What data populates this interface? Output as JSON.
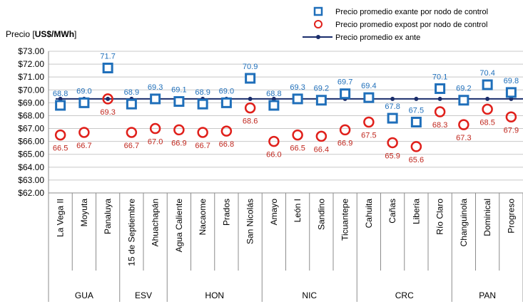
{
  "chart_data": {
    "type": "scatter",
    "title": "",
    "ylabel_prefix": "Precio [",
    "ylabel_bold": "US$/MWh",
    "ylabel_suffix": "]",
    "ylim": [
      62,
      73
    ],
    "y_ticks": [
      "$62.00",
      "$63.00",
      "$64.00",
      "$65.00",
      "$66.00",
      "$67.00",
      "$68.00",
      "$69.00",
      "$70.00",
      "$71.00",
      "$72.00",
      "$73.00"
    ],
    "categories": [
      "La Vega II",
      "Moyuta",
      "Panaluya",
      "15 de Septiembre",
      "Ahuachapán",
      "Agua Caliente",
      "Nacaome",
      "Prados",
      "San Nicolás",
      "Amayo",
      "León I",
      "Sandino",
      "Ticuantepe",
      "Cahuita",
      "Cañas",
      "Liberia",
      "Río Claro",
      "Changuinola",
      "Dominical",
      "Progreso"
    ],
    "groups": [
      {
        "name": "GUA",
        "count": 3
      },
      {
        "name": "ESV",
        "count": 2
      },
      {
        "name": "HON",
        "count": 4
      },
      {
        "name": "NIC",
        "count": 4
      },
      {
        "name": "CRC",
        "count": 4
      },
      {
        "name": "PAN",
        "count": 3
      }
    ],
    "series": [
      {
        "name": "Precio promedio exante por nodo de control",
        "marker": "square",
        "color": "#1f6fba",
        "values": [
          68.8,
          69.0,
          71.7,
          68.9,
          69.3,
          69.1,
          68.9,
          69.0,
          70.9,
          68.8,
          69.3,
          69.2,
          69.7,
          69.4,
          67.8,
          67.5,
          70.1,
          69.2,
          70.4,
          69.8
        ],
        "labels": [
          "68.8",
          "69.0",
          "71.7",
          "68.9",
          "69.3",
          "69.1",
          "68.9",
          "69.0",
          "70.9",
          "68.8",
          "69.3",
          "69.2",
          "69.7",
          "69.4",
          "67.8",
          "67.5",
          "70.1",
          "69.2",
          "70.4",
          "69.8"
        ]
      },
      {
        "name": "Precio promedio expost por nodo de control",
        "marker": "circle",
        "color": "#e0201b",
        "values": [
          66.5,
          66.7,
          69.3,
          66.7,
          67.0,
          66.9,
          66.7,
          66.8,
          68.6,
          66.0,
          66.5,
          66.4,
          66.9,
          67.5,
          65.9,
          65.6,
          68.3,
          67.3,
          68.5,
          67.9
        ],
        "labels": [
          "66.5",
          "66.7",
          "69.3",
          "66.7",
          "67.0",
          "66.9",
          "66.7",
          "66.8",
          "68.6",
          "66.0",
          "66.5",
          "66.4",
          "66.9",
          "67.5",
          "65.9",
          "65.6",
          "68.3",
          "67.3",
          "68.5",
          "67.9"
        ]
      },
      {
        "name": "Precio promedio ex ante",
        "marker": "line",
        "color": "#1a2d6b",
        "value": 69.3
      }
    ],
    "legend_position": "top-right",
    "grid": "horizontal"
  }
}
